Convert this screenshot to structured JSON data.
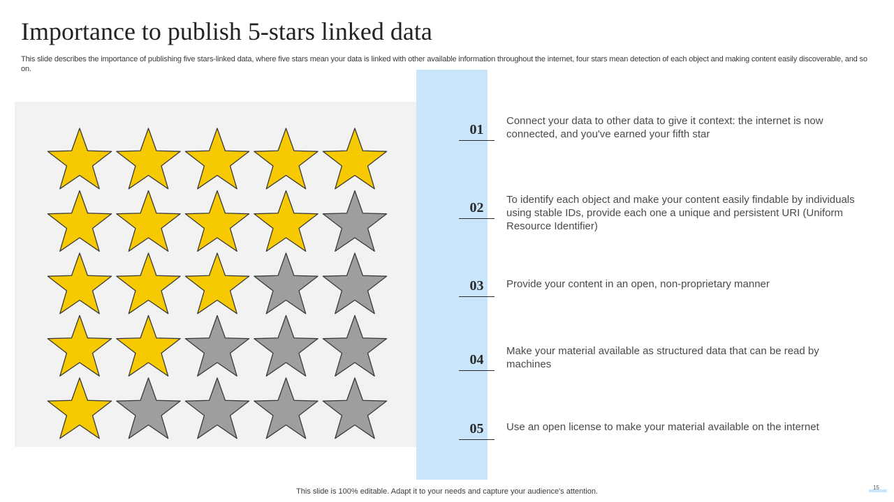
{
  "slide": {
    "title": "Importance to publish 5-stars linked data",
    "subtitle": "This slide describes the importance of publishing five stars-linked data, where five stars mean your data is linked with other available information throughout the internet, four stars mean detection of each object and making content easily discoverable, and so on.",
    "footer": "This slide is 100% editable. Adapt it to your needs and capture your audience's attention.",
    "page_number": "15"
  },
  "colors": {
    "star_filled": "#f7c900",
    "star_empty": "#9e9e9e",
    "star_stroke": "#3a3a3a",
    "panel_bg": "#f2f2f2",
    "band_bg": "#c9e6fb"
  },
  "star_rows": [
    5,
    4,
    3,
    2,
    1
  ],
  "stars_per_row": 5,
  "items": [
    {
      "number": "01",
      "text": "Connect your data to other data to give it context: the internet is now connected, and you've earned your fifth star"
    },
    {
      "number": "02",
      "text": "To identify each object and make your content easily findable by individuals using stable IDs, provide each one a unique and persistent URI (Uniform Resource Identifier)"
    },
    {
      "number": "03",
      "text": "Provide your content in an open, non-proprietary manner"
    },
    {
      "number": "04",
      "text": "Make your material available as structured data that can be read by machines"
    },
    {
      "number": "05",
      "text": "Use an open license to make your material available on the internet"
    }
  ]
}
